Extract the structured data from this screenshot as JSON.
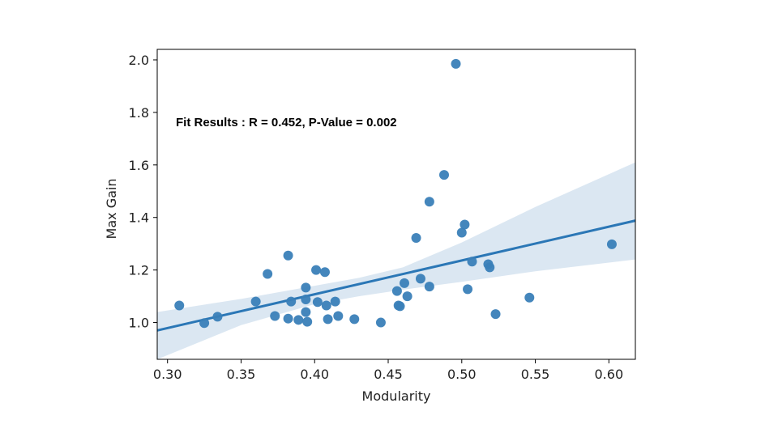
{
  "chart_data": {
    "type": "scatter",
    "xlabel": "Modularity",
    "ylabel": "Max Gain",
    "xlim": [
      0.293,
      0.618
    ],
    "ylim": [
      0.86,
      2.04
    ],
    "x_ticks": [
      0.3,
      0.35,
      0.4,
      0.45,
      0.5,
      0.55,
      0.6
    ],
    "x_tick_labels": [
      "0.30",
      "0.35",
      "0.40",
      "0.45",
      "0.50",
      "0.55",
      "0.60"
    ],
    "y_ticks": [
      1.0,
      1.2,
      1.4,
      1.6,
      1.8,
      2.0
    ],
    "y_tick_labels": [
      "1.0",
      "1.2",
      "1.4",
      "1.6",
      "1.8",
      "2.0"
    ],
    "annotation": "Fit Results : R = 0.452, P-Value = 0.002",
    "grid": false,
    "colors": {
      "points": "#3a7fb8",
      "line": "#2b77b6",
      "band": "#d5e3f0"
    },
    "points": [
      [
        0.308,
        1.065
      ],
      [
        0.325,
        0.998
      ],
      [
        0.334,
        1.022
      ],
      [
        0.36,
        1.08
      ],
      [
        0.368,
        1.185
      ],
      [
        0.373,
        1.025
      ],
      [
        0.382,
        1.255
      ],
      [
        0.382,
        1.015
      ],
      [
        0.384,
        1.08
      ],
      [
        0.389,
        1.01
      ],
      [
        0.394,
        1.133
      ],
      [
        0.394,
        1.04
      ],
      [
        0.394,
        1.088
      ],
      [
        0.395,
        1.003
      ],
      [
        0.401,
        1.2
      ],
      [
        0.402,
        1.078
      ],
      [
        0.407,
        1.192
      ],
      [
        0.408,
        1.065
      ],
      [
        0.409,
        1.013
      ],
      [
        0.414,
        1.08
      ],
      [
        0.416,
        1.025
      ],
      [
        0.427,
        1.013
      ],
      [
        0.445,
        1.0
      ],
      [
        0.456,
        1.12
      ],
      [
        0.457,
        1.065
      ],
      [
        0.458,
        1.062
      ],
      [
        0.461,
        1.15
      ],
      [
        0.463,
        1.1
      ],
      [
        0.469,
        1.322
      ],
      [
        0.472,
        1.167
      ],
      [
        0.478,
        1.46
      ],
      [
        0.478,
        1.137
      ],
      [
        0.488,
        1.562
      ],
      [
        0.496,
        1.985
      ],
      [
        0.5,
        1.342
      ],
      [
        0.502,
        1.373
      ],
      [
        0.504,
        1.127
      ],
      [
        0.507,
        1.232
      ],
      [
        0.518,
        1.222
      ],
      [
        0.519,
        1.21
      ],
      [
        0.523,
        1.032
      ],
      [
        0.546,
        1.095
      ],
      [
        0.602,
        1.298
      ]
    ],
    "regression": {
      "x": [
        0.293,
        0.618
      ],
      "y": [
        0.97,
        1.388
      ]
    },
    "confidence_band": {
      "x": [
        0.293,
        0.35,
        0.4,
        0.43,
        0.46,
        0.5,
        0.55,
        0.618
      ],
      "lower": [
        0.86,
        0.99,
        1.07,
        1.1,
        1.125,
        1.155,
        1.195,
        1.24
      ],
      "upper": [
        1.04,
        1.09,
        1.14,
        1.17,
        1.21,
        1.305,
        1.44,
        1.61
      ]
    }
  }
}
